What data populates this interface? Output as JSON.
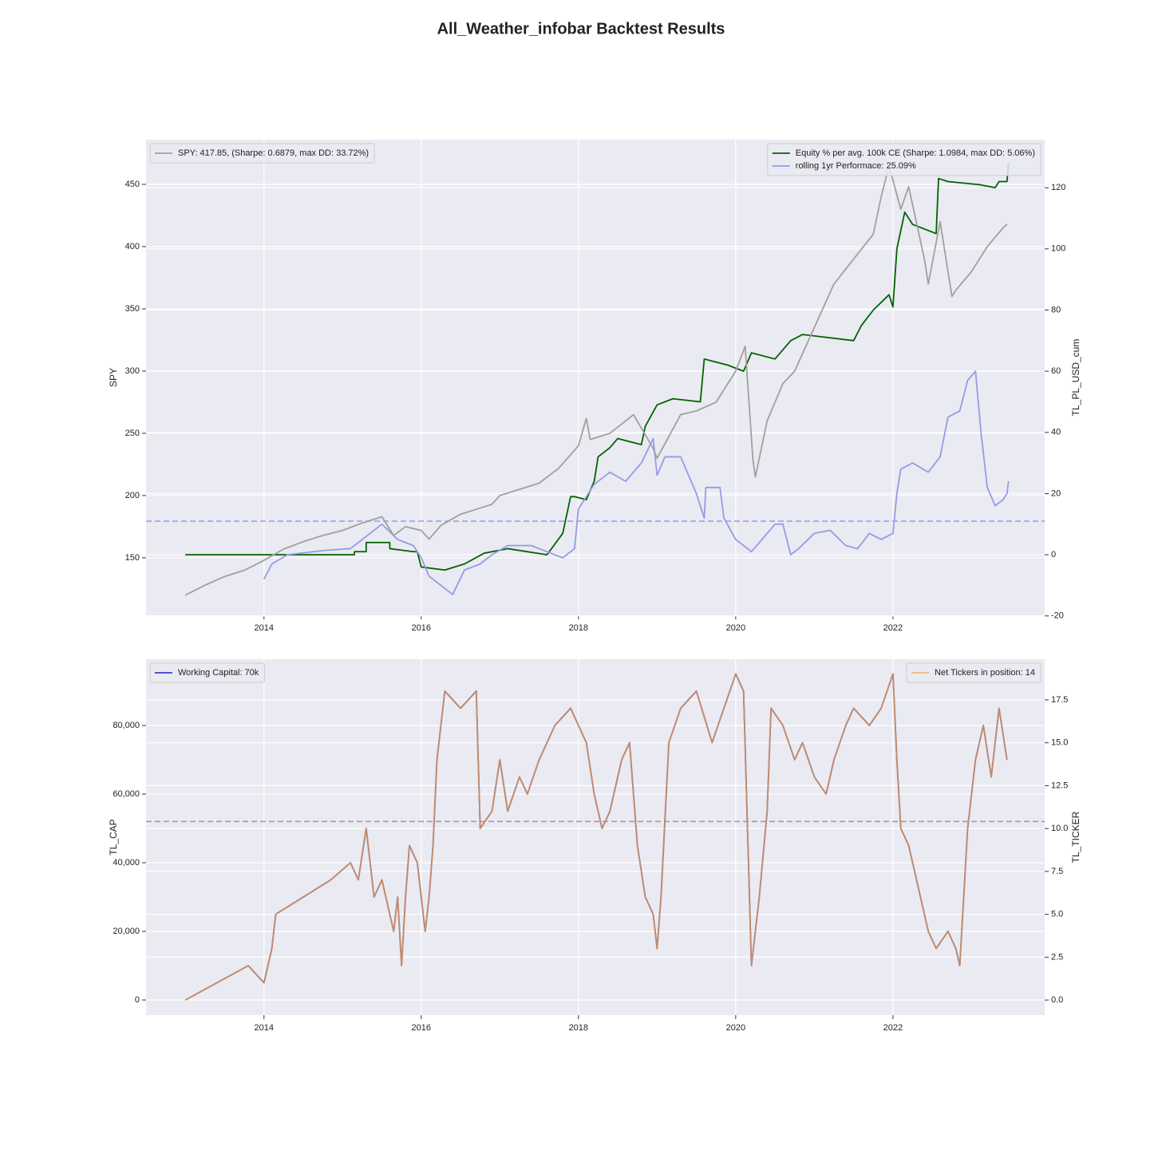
{
  "chart_data": [
    {
      "type": "line",
      "title": "All_Weather_infobar Backtest Results",
      "ylabel": "SPY",
      "y2label": "TL_PL_USD_cum",
      "xlim": [
        2012.5,
        2023.93
      ],
      "xticks": [
        2014,
        2016,
        2018,
        2020,
        2022
      ],
      "ylim": [
        103.8,
        485.9
      ],
      "yticks": [
        150,
        200,
        250,
        300,
        350,
        400,
        450
      ],
      "y2lim": [
        -19.8,
        135.7
      ],
      "y2ticks": [
        -20,
        0,
        20,
        40,
        60,
        80,
        100,
        120
      ],
      "grid": true,
      "legend": {
        "y": "upper left",
        "y2": "upper right"
      },
      "series": [
        {
          "name": "Equity % per avg. 100k CE (Sharpe: 1.0984, max DD: 5.06%)",
          "color": "#006400",
          "alpha": 1,
          "axis": "y2",
          "x": [
            2013.0,
            2015.15,
            2015.15,
            2015.3,
            2015.3,
            2015.6,
            2015.6,
            2015.9,
            2015.95,
            2016.0,
            2016.3,
            2016.55,
            2016.8,
            2017.1,
            2017.6,
            2017.8,
            2017.9,
            2017.95,
            2018.1,
            2018.2,
            2018.25,
            2018.4,
            2018.5,
            2018.8,
            2018.85,
            2019.0,
            2019.2,
            2019.55,
            2019.6,
            2019.9,
            2020.1,
            2020.2,
            2020.5,
            2020.7,
            2020.85,
            2021.5,
            2021.6,
            2021.75,
            2021.95,
            2022.0,
            2022.05,
            2022.15,
            2022.25,
            2022.55,
            2022.58,
            2022.7,
            2023.1,
            2023.3,
            2023.35,
            2023.45,
            2023.47
          ],
          "values": [
            0,
            0,
            1,
            1,
            4,
            4,
            2,
            1,
            1,
            -4,
            -5,
            -3,
            0.5,
            2,
            0,
            7,
            19,
            19,
            18,
            24,
            32,
            35,
            38,
            36,
            42,
            49,
            51,
            50,
            64,
            62,
            60,
            66,
            64,
            70,
            72,
            70,
            75,
            80,
            85,
            81,
            100,
            112,
            108,
            105,
            123,
            122,
            121,
            120,
            122,
            122,
            128
          ]
        },
        {
          "name": "rolling 1yr Performace: 25.09%",
          "color": "#9999e6",
          "alpha": 1,
          "axis": "y2",
          "x": [
            2014.0,
            2014.1,
            2014.3,
            2014.8,
            2015.1,
            2015.3,
            2015.5,
            2015.7,
            2015.9,
            2016.0,
            2016.1,
            2016.25,
            2016.4,
            2016.55,
            2016.75,
            2016.9,
            2017.1,
            2017.4,
            2017.6,
            2017.8,
            2017.95,
            2018.0,
            2018.2,
            2018.4,
            2018.6,
            2018.8,
            2018.95,
            2019.0,
            2019.1,
            2019.3,
            2019.5,
            2019.6,
            2019.62,
            2019.8,
            2019.85,
            2020.0,
            2020.2,
            2020.5,
            2020.6,
            2020.7,
            2020.8,
            2021.0,
            2021.2,
            2021.4,
            2021.55,
            2021.7,
            2021.85,
            2022.0,
            2022.05,
            2022.1,
            2022.25,
            2022.45,
            2022.6,
            2022.7,
            2022.85,
            2022.95,
            2023.05,
            2023.12,
            2023.2,
            2023.3,
            2023.4,
            2023.45,
            2023.47
          ],
          "values": [
            -8,
            -3,
            0,
            1.5,
            2,
            6,
            10,
            5,
            3,
            -1,
            -7,
            -10,
            -13,
            -5,
            -3,
            0,
            3,
            3,
            1,
            -1,
            2,
            15,
            23,
            27,
            24,
            30,
            38,
            26,
            32,
            32,
            20,
            12,
            22,
            22,
            12,
            5,
            1,
            10,
            10,
            0,
            2,
            7,
            8,
            3,
            2,
            7,
            5,
            7,
            20,
            28,
            30,
            27,
            32,
            45,
            47,
            57,
            60,
            40,
            22,
            16,
            18,
            20,
            24
          ]
        },
        {
          "name": "SPY: 417.85, (Sharpe: 0.6879, max DD: 33.72%)",
          "color": "#a0a0a0",
          "alpha": 1,
          "axis": "y",
          "x": [
            2013.0,
            2013.25,
            2013.5,
            2013.75,
            2014.0,
            2014.25,
            2014.5,
            2014.75,
            2015.0,
            2015.25,
            2015.5,
            2015.65,
            2015.8,
            2016.0,
            2016.1,
            2016.25,
            2016.5,
            2016.75,
            2016.9,
            2017.0,
            2017.25,
            2017.5,
            2017.75,
            2018.0,
            2018.1,
            2018.15,
            2018.4,
            2018.7,
            2018.95,
            2019.0,
            2019.3,
            2019.5,
            2019.75,
            2020.0,
            2020.12,
            2020.22,
            2020.25,
            2020.4,
            2020.6,
            2020.75,
            2021.0,
            2021.25,
            2021.5,
            2021.75,
            2021.85,
            2021.95,
            2022.1,
            2022.2,
            2022.4,
            2022.45,
            2022.6,
            2022.75,
            2022.8,
            2023.0,
            2023.2,
            2023.4,
            2023.45
          ],
          "values": [
            120,
            128,
            135,
            140,
            148,
            157,
            163,
            168,
            172,
            178,
            183,
            168,
            175,
            172,
            165,
            176,
            185,
            190,
            193,
            200,
            205,
            210,
            222,
            240,
            262,
            245,
            250,
            265,
            238,
            230,
            265,
            268,
            275,
            300,
            320,
            228,
            215,
            260,
            290,
            300,
            335,
            370,
            390,
            410,
            440,
            465,
            430,
            448,
            390,
            370,
            420,
            360,
            365,
            380,
            400,
            415,
            418
          ]
        }
      ],
      "reference_lines": [
        {
          "value": 11,
          "axis": "y2",
          "color": "#9999e6",
          "style": "dashed"
        }
      ]
    },
    {
      "type": "line",
      "ylabel": "TL_CAP",
      "y2label": "TL_TICKER",
      "xlim": [
        2012.5,
        2023.93
      ],
      "xticks": [
        2014,
        2016,
        2018,
        2020,
        2022
      ],
      "ylim": [
        -4419,
        99302
      ],
      "yticks": [
        0,
        {
          "value": 20000,
          "label": "20,000"
        },
        {
          "value": 40000,
          "label": "40,000"
        },
        {
          "value": 60000,
          "label": "60,000"
        },
        {
          "value": 80000,
          "label": "80,000"
        }
      ],
      "y2lim": [
        -0.88,
        19.87
      ],
      "y2ticks": [
        {
          "value": 0,
          "label": "0.0"
        },
        {
          "value": 2.5,
          "label": "2.5"
        },
        {
          "value": 5,
          "label": "5.0"
        },
        {
          "value": 7.5,
          "label": "7.5"
        },
        {
          "value": 10,
          "label": "10.0"
        },
        {
          "value": 12.5,
          "label": "12.5"
        },
        {
          "value": 15,
          "label": "15.0"
        },
        {
          "value": 17.5,
          "label": "17.5"
        }
      ],
      "grid": true,
      "legend": {
        "y": "upper left",
        "y2": "upper right"
      },
      "series": [
        {
          "name": "Working Capital: 70k",
          "color": "#3a3acc",
          "alpha": 1,
          "axis": "y",
          "x": [
            2013.0,
            2013.8,
            2014.0,
            2014.1,
            2014.15,
            2014.85,
            2015.1,
            2015.2,
            2015.3,
            2015.4,
            2015.5,
            2015.6,
            2015.65,
            2015.7,
            2015.75,
            2015.8,
            2015.85,
            2015.95,
            2016.05,
            2016.1,
            2016.15,
            2016.2,
            2016.3,
            2016.5,
            2016.7,
            2016.75,
            2016.9,
            2017.0,
            2017.1,
            2017.25,
            2017.35,
            2017.5,
            2017.7,
            2017.9,
            2018.1,
            2018.2,
            2018.3,
            2018.4,
            2018.55,
            2018.65,
            2018.75,
            2018.85,
            2018.95,
            2019.0,
            2019.05,
            2019.15,
            2019.3,
            2019.5,
            2019.7,
            2019.85,
            2020.0,
            2020.1,
            2020.15,
            2020.2,
            2020.3,
            2020.4,
            2020.45,
            2020.6,
            2020.75,
            2020.85,
            2021.0,
            2021.15,
            2021.25,
            2021.4,
            2021.5,
            2021.7,
            2021.85,
            2022.0,
            2022.05,
            2022.1,
            2022.2,
            2022.3,
            2022.45,
            2022.55,
            2022.7,
            2022.8,
            2022.85,
            2022.95,
            2023.05,
            2023.15,
            2023.25,
            2023.35,
            2023.45
          ],
          "values": [
            0,
            10000,
            5000,
            15000,
            25000,
            35000,
            40000,
            35000,
            50000,
            30000,
            35000,
            25000,
            20000,
            30000,
            10000,
            30000,
            45000,
            40000,
            20000,
            30000,
            45000,
            70000,
            90000,
            85000,
            90000,
            50000,
            55000,
            70000,
            55000,
            65000,
            60000,
            70000,
            80000,
            85000,
            75000,
            60000,
            50000,
            55000,
            70000,
            75000,
            45000,
            30000,
            25000,
            15000,
            30000,
            75000,
            85000,
            90000,
            75000,
            85000,
            95000,
            90000,
            50000,
            10000,
            30000,
            55000,
            85000,
            80000,
            70000,
            75000,
            65000,
            60000,
            70000,
            80000,
            85000,
            80000,
            85000,
            95000,
            70000,
            50000,
            45000,
            35000,
            20000,
            15000,
            20000,
            15000,
            10000,
            50000,
            70000,
            80000,
            65000,
            85000,
            70000
          ]
        },
        {
          "name": "Net Tickers in position: 14",
          "color": "#f0a848",
          "alpha": 0.75,
          "axis": "y2",
          "x": [
            2013.0,
            2013.8,
            2014.0,
            2014.1,
            2014.15,
            2014.85,
            2015.1,
            2015.2,
            2015.3,
            2015.4,
            2015.5,
            2015.6,
            2015.65,
            2015.7,
            2015.75,
            2015.8,
            2015.85,
            2015.95,
            2016.05,
            2016.1,
            2016.15,
            2016.2,
            2016.3,
            2016.5,
            2016.7,
            2016.75,
            2016.9,
            2017.0,
            2017.1,
            2017.25,
            2017.35,
            2017.5,
            2017.7,
            2017.9,
            2018.1,
            2018.2,
            2018.3,
            2018.4,
            2018.55,
            2018.65,
            2018.75,
            2018.85,
            2018.95,
            2019.0,
            2019.05,
            2019.15,
            2019.3,
            2019.5,
            2019.7,
            2019.85,
            2020.0,
            2020.1,
            2020.15,
            2020.2,
            2020.3,
            2020.4,
            2020.45,
            2020.6,
            2020.75,
            2020.85,
            2021.0,
            2021.15,
            2021.25,
            2021.4,
            2021.5,
            2021.7,
            2021.85,
            2022.0,
            2022.05,
            2022.1,
            2022.2,
            2022.3,
            2022.45,
            2022.55,
            2022.7,
            2022.8,
            2022.85,
            2022.95,
            2023.05,
            2023.15,
            2023.25,
            2023.35,
            2023.45
          ],
          "values": [
            0,
            2,
            1,
            3,
            5,
            7,
            8,
            7,
            10,
            6,
            7,
            5,
            4,
            6,
            2,
            6,
            9,
            8,
            4,
            6,
            9,
            14,
            18,
            17,
            18,
            10,
            11,
            14,
            11,
            13,
            12,
            14,
            16,
            17,
            15,
            12,
            10,
            11,
            14,
            15,
            9,
            6,
            5,
            3,
            6,
            15,
            17,
            18,
            15,
            17,
            19,
            18,
            10,
            2,
            6,
            11,
            17,
            16,
            14,
            15,
            13,
            12,
            14,
            16,
            17,
            16,
            17,
            19,
            14,
            10,
            9,
            7,
            4,
            3,
            4,
            3,
            2,
            10,
            14,
            16,
            13,
            17,
            14
          ]
        }
      ],
      "reference_lines": [
        {
          "value": 52000,
          "axis": "y",
          "color": "#b08aa8",
          "style": "dashed"
        }
      ]
    }
  ]
}
